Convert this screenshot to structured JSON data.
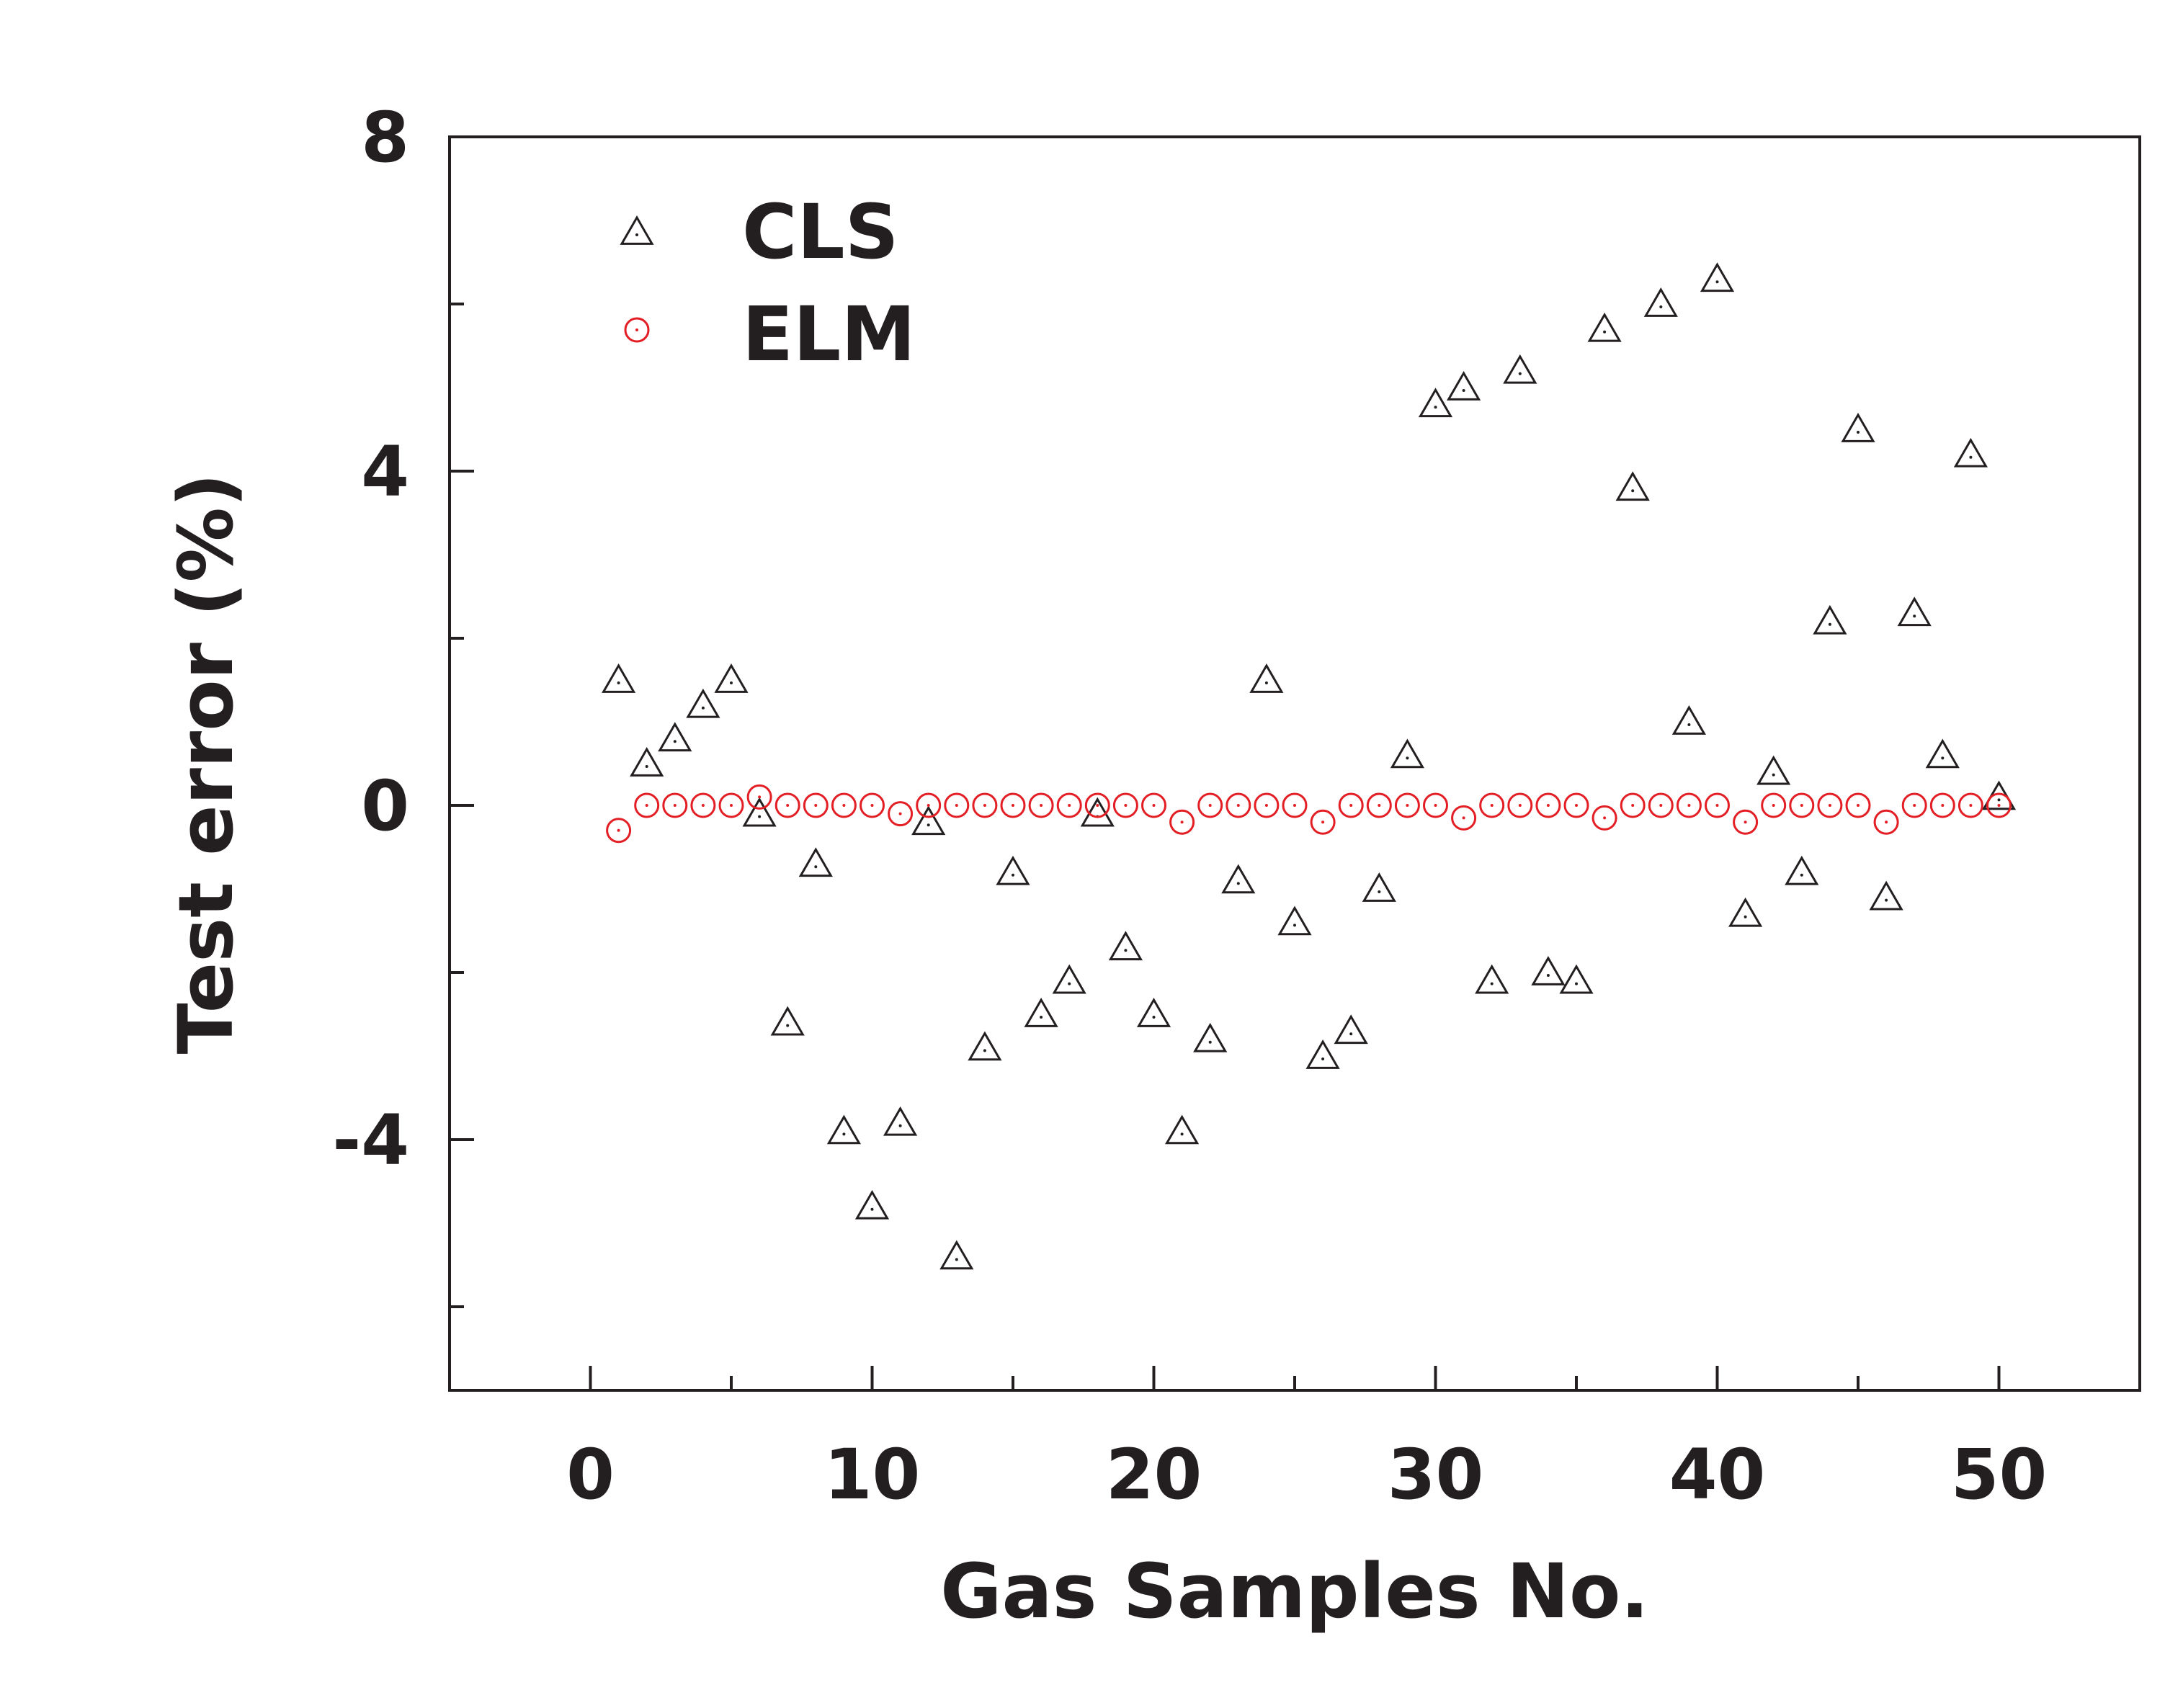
{
  "chart_data": {
    "type": "scatter",
    "title": "",
    "xlabel": "Gas Samples No.",
    "ylabel": "Test error (%)",
    "xlim": [
      -5,
      55
    ],
    "ylim": [
      -7,
      8
    ],
    "xticks": [
      0,
      10,
      20,
      30,
      40,
      50
    ],
    "xtick_labels": [
      "0",
      "10",
      "20",
      "30",
      "40",
      "50"
    ],
    "yticks": [
      -4,
      0,
      4,
      8
    ],
    "ytick_labels": [
      "-4",
      "0",
      "4",
      "8"
    ],
    "yminor": [
      -6,
      -2,
      2,
      6
    ],
    "xminor": [
      5,
      15,
      25,
      35,
      45
    ],
    "legend": {
      "position": "top-left"
    },
    "colors": {
      "CLS": "#231f20",
      "ELM": "#e31e24",
      "axis": "#231f20"
    },
    "series": [
      {
        "name": "CLS",
        "marker": "triangle",
        "x": [
          1,
          2,
          3,
          4,
          5,
          6,
          7,
          8,
          9,
          10,
          11,
          12,
          13,
          14,
          15,
          16,
          17,
          18,
          19,
          20,
          21,
          22,
          23,
          24,
          25,
          26,
          27,
          28,
          29,
          30,
          31,
          32,
          33,
          34,
          35,
          36,
          37,
          38,
          39,
          40,
          41,
          42,
          43,
          44,
          45,
          46,
          47,
          48,
          49,
          50
        ],
        "values": [
          1.5,
          0.5,
          0.8,
          1.2,
          1.5,
          -0.1,
          -2.6,
          -0.7,
          -3.9,
          -4.8,
          -3.8,
          -0.2,
          -5.4,
          -2.9,
          -0.8,
          -2.5,
          -2.1,
          -0.1,
          -1.7,
          -2.5,
          -3.9,
          -2.8,
          -0.9,
          1.5,
          -1.4,
          -3.0,
          -2.7,
          -1.0,
          0.6,
          4.8,
          5.0,
          -2.1,
          5.2,
          -2.0,
          -2.1,
          5.7,
          3.8,
          6.0,
          1.0,
          6.3,
          -1.3,
          0.4,
          -0.8,
          2.2,
          4.5,
          -1.1,
          2.3,
          0.6,
          4.2,
          0.1
        ]
      },
      {
        "name": "ELM",
        "marker": "circle",
        "x": [
          1,
          2,
          3,
          4,
          5,
          6,
          7,
          8,
          9,
          10,
          11,
          12,
          13,
          14,
          15,
          16,
          17,
          18,
          19,
          20,
          21,
          22,
          23,
          24,
          25,
          26,
          27,
          28,
          29,
          30,
          31,
          32,
          33,
          34,
          35,
          36,
          37,
          38,
          39,
          40,
          41,
          42,
          43,
          44,
          45,
          46,
          47,
          48,
          49,
          50
        ],
        "values": [
          -0.3,
          0,
          0,
          0,
          0,
          0.1,
          0,
          0,
          0,
          0,
          -0.1,
          0,
          0,
          0,
          0,
          0,
          0,
          0,
          0,
          0,
          -0.2,
          0,
          0,
          0,
          0,
          -0.2,
          0,
          0,
          0,
          0,
          -0.15,
          0,
          0,
          0,
          0,
          -0.15,
          0,
          0,
          0,
          0,
          -0.2,
          0,
          0,
          0,
          0,
          -0.2,
          0,
          0,
          0,
          0
        ]
      }
    ]
  }
}
